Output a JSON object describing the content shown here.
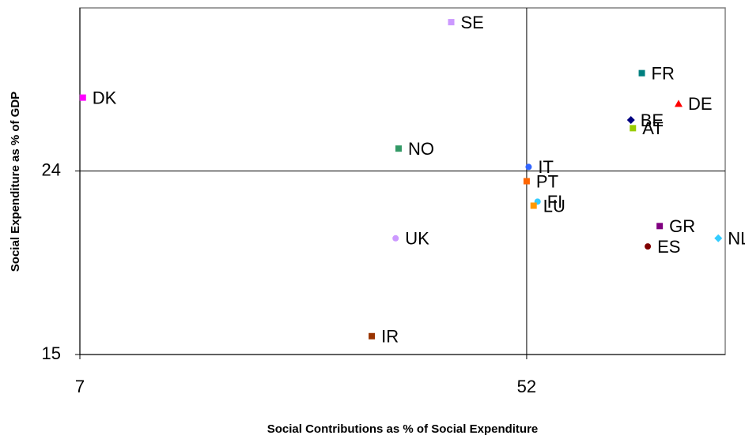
{
  "chart_data": {
    "type": "scatter",
    "x_label": "Social Contributions as % of Social Expenditure",
    "y_label": "Social Expenditure as % of GDP",
    "xlim": [
      7,
      72
    ],
    "ylim": [
      15,
      32
    ],
    "xticks": [
      7,
      52
    ],
    "yticks": [
      15,
      24
    ],
    "crosshair": true,
    "series": [
      {
        "name": "SE",
        "color": "#cc99ff",
        "marker": "square",
        "x": [
          44.4
        ],
        "values": [
          31.3
        ]
      },
      {
        "name": "DK",
        "color": "#ff00ff",
        "marker": "square",
        "x": [
          7.3
        ],
        "values": [
          27.6
        ]
      },
      {
        "name": "FR",
        "color": "#008080",
        "marker": "square",
        "x": [
          63.6
        ],
        "values": [
          28.8
        ]
      },
      {
        "name": "DE",
        "color": "#ff0000",
        "marker": "triangle",
        "x": [
          67.3
        ],
        "values": [
          27.3
        ]
      },
      {
        "name": "BE",
        "color": "#000080",
        "marker": "diamond",
        "x": [
          62.5
        ],
        "values": [
          26.5
        ]
      },
      {
        "name": "AT",
        "color": "#99cc00",
        "marker": "square",
        "x": [
          62.7
        ],
        "values": [
          26.1
        ]
      },
      {
        "name": "NO",
        "color": "#339966",
        "marker": "square",
        "x": [
          39.1
        ],
        "values": [
          25.1
        ]
      },
      {
        "name": "IT",
        "color": "#3366ff",
        "marker": "circle",
        "x": [
          52.2
        ],
        "values": [
          24.2
        ]
      },
      {
        "name": "PT",
        "color": "#ff6600",
        "marker": "square",
        "x": [
          52.0
        ],
        "values": [
          23.5
        ]
      },
      {
        "name": "FI",
        "color": "#33ccff",
        "marker": "circle",
        "x": [
          53.1
        ],
        "values": [
          22.5
        ]
      },
      {
        "name": "LU",
        "color": "#ff9900",
        "marker": "square",
        "x": [
          52.7
        ],
        "values": [
          22.3
        ]
      },
      {
        "name": "GR",
        "color": "#800080",
        "marker": "square",
        "x": [
          65.4
        ],
        "values": [
          21.3
        ]
      },
      {
        "name": "NL",
        "color": "#33ccff",
        "marker": "diamond",
        "x": [
          71.3
        ],
        "values": [
          20.7
        ]
      },
      {
        "name": "ES",
        "color": "#800000",
        "marker": "circle",
        "x": [
          64.2
        ],
        "values": [
          20.3
        ]
      },
      {
        "name": "UK",
        "color": "#cc99ff",
        "marker": "circle",
        "x": [
          38.8
        ],
        "values": [
          20.7
        ]
      },
      {
        "name": "IR",
        "color": "#993300",
        "marker": "square",
        "x": [
          36.4
        ],
        "values": [
          15.9
        ]
      }
    ]
  }
}
